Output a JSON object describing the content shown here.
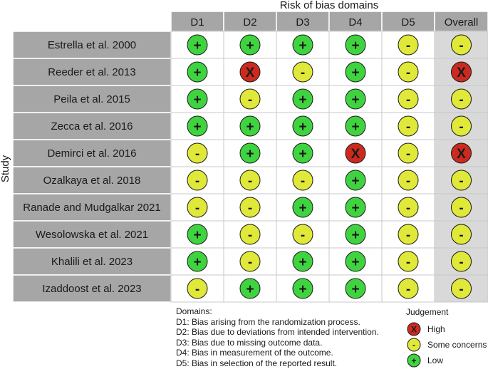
{
  "chart_data": {
    "type": "table",
    "title": "Risk of bias domains",
    "ylabel": "Study",
    "columns": [
      "D1",
      "D2",
      "D3",
      "D4",
      "D5",
      "Overall"
    ],
    "studies": [
      {
        "name": "Estrella et al. 2000",
        "judgements": [
          "Low",
          "Low",
          "Low",
          "Low",
          "Some concerns",
          "Some concerns"
        ]
      },
      {
        "name": "Reeder et al. 2013",
        "judgements": [
          "Low",
          "High",
          "Some concerns",
          "Low",
          "Some concerns",
          "High"
        ]
      },
      {
        "name": "Peila et al. 2015",
        "judgements": [
          "Low",
          "Some concerns",
          "Low",
          "Low",
          "Some concerns",
          "Some concerns"
        ]
      },
      {
        "name": "Zecca et al. 2016",
        "judgements": [
          "Low",
          "Low",
          "Low",
          "Low",
          "Some concerns",
          "Some concerns"
        ]
      },
      {
        "name": "Demirci et al. 2016",
        "judgements": [
          "Some concerns",
          "Low",
          "Low",
          "High",
          "Some concerns",
          "High"
        ]
      },
      {
        "name": "Ozalkaya et al. 2018",
        "judgements": [
          "Some concerns",
          "Some concerns",
          "Some concerns",
          "Low",
          "Some concerns",
          "Some concerns"
        ]
      },
      {
        "name": "Ranade and Mudgalkar 2021",
        "judgements": [
          "Some concerns",
          "Some concerns",
          "Low",
          "Low",
          "Some concerns",
          "Some concerns"
        ]
      },
      {
        "name": "Wesolowska et al. 2021",
        "judgements": [
          "Low",
          "Some concerns",
          "Some concerns",
          "Low",
          "Some concerns",
          "Some concerns"
        ]
      },
      {
        "name": "Khalili et al. 2023",
        "judgements": [
          "Low",
          "Some concerns",
          "Low",
          "Low",
          "Some concerns",
          "Some concerns"
        ]
      },
      {
        "name": "Izaddoost et al. 2023",
        "judgements": [
          "Some concerns",
          "Low",
          "Low",
          "Low",
          "Some concerns",
          "Some concerns"
        ]
      }
    ],
    "domains_heading": "Domains:",
    "domains": [
      "D1: Bias arising from the randomization process.",
      "D2: Bias due to deviations from intended intervention.",
      "D3: Bias due to missing outcome data.",
      "D4: Bias in measurement of the outcome.",
      "D5: Bias in selection of the reported result."
    ],
    "legend_title": "Judgement",
    "legend": [
      {
        "label": "High",
        "symbol": "X",
        "color": "#cc2a1f"
      },
      {
        "label": "Some concerns",
        "symbol": "-",
        "color": "#e0e83a"
      },
      {
        "label": "Low",
        "symbol": "+",
        "color": "#3fd43f"
      }
    ]
  }
}
